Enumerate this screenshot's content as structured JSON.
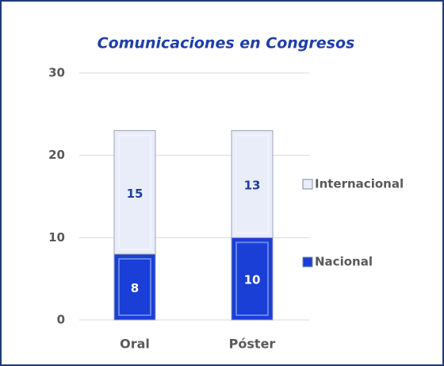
{
  "chart_data": {
    "type": "stacked_bar",
    "title": "Comunicaciones en Congresos",
    "categories": [
      "Oral",
      "Póster"
    ],
    "series": [
      {
        "name": "Nacional",
        "color": "#1a3fd6",
        "label_color": "#ffffff",
        "values": [
          8,
          10
        ]
      },
      {
        "name": "Internacional",
        "color": "#e9edf9",
        "label_color": "#1f3f9a",
        "values": [
          15,
          13
        ]
      }
    ],
    "ylim": [
      0,
      30
    ],
    "yticks": [
      0,
      10,
      20,
      30
    ],
    "grid": true,
    "legend": "right"
  }
}
